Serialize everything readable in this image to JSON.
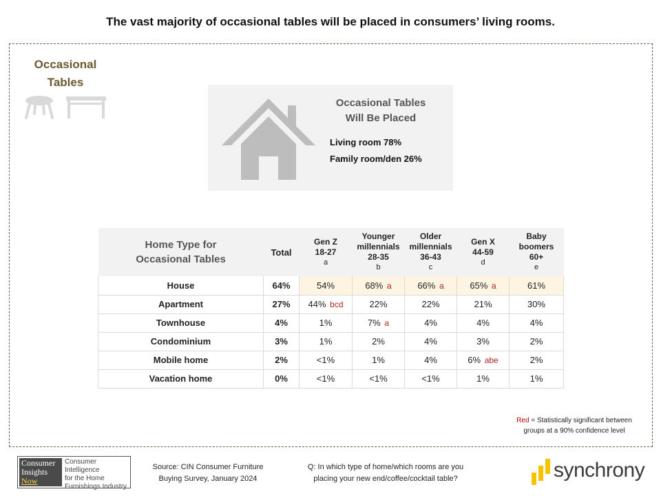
{
  "headline": "The vast majority of occasional tables will be placed in consumers’ living rooms.",
  "category": {
    "line1": "Occasional",
    "line2": "Tables"
  },
  "placed": {
    "title_line1": "Occasional Tables",
    "title_line2": "Will Be Placed",
    "items": [
      "Living room 78%",
      "Family room/den 26%"
    ]
  },
  "table": {
    "title_line1": "Home Type for",
    "title_line2": "Occasional Tables",
    "total_header": "Total",
    "columns": [
      {
        "lines": [
          "Gen Z",
          "18-27"
        ],
        "letter": "a"
      },
      {
        "lines": [
          "Younger",
          "millennials",
          "28-35"
        ],
        "letter": "b"
      },
      {
        "lines": [
          "Older",
          "millennials",
          "36-43"
        ],
        "letter": "c"
      },
      {
        "lines": [
          "Gen X",
          "44-59"
        ],
        "letter": "d"
      },
      {
        "lines": [
          "Baby",
          "boomers",
          "60+"
        ],
        "letter": "e"
      }
    ],
    "rows": [
      {
        "label": "House",
        "total": "64%",
        "cells": [
          [
            "54%",
            ""
          ],
          [
            "68%",
            "a"
          ],
          [
            "66%",
            "a"
          ],
          [
            "65%",
            "a"
          ],
          [
            "61%",
            ""
          ]
        ]
      },
      {
        "label": "Apartment",
        "total": "27%",
        "cells": [
          [
            "44%",
            "bcd"
          ],
          [
            "22%",
            ""
          ],
          [
            "22%",
            ""
          ],
          [
            "21%",
            ""
          ],
          [
            "30%",
            ""
          ]
        ]
      },
      {
        "label": "Townhouse",
        "total": "4%",
        "cells": [
          [
            "1%",
            ""
          ],
          [
            "7%",
            "a"
          ],
          [
            "4%",
            ""
          ],
          [
            "4%",
            ""
          ],
          [
            "4%",
            ""
          ]
        ]
      },
      {
        "label": "Condominium",
        "total": "3%",
        "cells": [
          [
            "1%",
            ""
          ],
          [
            "2%",
            ""
          ],
          [
            "4%",
            ""
          ],
          [
            "3%",
            ""
          ],
          [
            "2%",
            ""
          ]
        ]
      },
      {
        "label": "Mobile home",
        "total": "2%",
        "cells": [
          [
            "<1%",
            ""
          ],
          [
            "1%",
            ""
          ],
          [
            "4%",
            ""
          ],
          [
            "6%",
            "abe"
          ],
          [
            "2%",
            ""
          ]
        ]
      },
      {
        "label": "Vacation home",
        "total": "0%",
        "cells": [
          [
            "<1%",
            ""
          ],
          [
            "<1%",
            ""
          ],
          [
            "<1%",
            ""
          ],
          [
            "1%",
            ""
          ],
          [
            "1%",
            ""
          ]
        ]
      }
    ]
  },
  "note": {
    "red_word": "Red",
    "rest_line1": " = Statistically significant between",
    "line2": "groups at a 90% confidence level"
  },
  "source": {
    "line1": "Source:  CIN Consumer Furniture",
    "line2": "Buying Survey, January 2024"
  },
  "question": {
    "line1": "Q: In which type of home/which rooms are you",
    "line2": "placing your new end/coffee/cocktail table?"
  },
  "cin_logo": {
    "left_lines": [
      "Consumer",
      "Insights",
      "Now"
    ],
    "right_lines": [
      "Consumer Intelligence",
      "for the Home",
      "Furnishings Industry"
    ]
  },
  "sync_logo": {
    "text": "synchrony",
    "bar_color": "#f5c400"
  },
  "icons": [
    "round-table-icon",
    "rectangular-table-icon",
    "house-icon"
  ]
}
